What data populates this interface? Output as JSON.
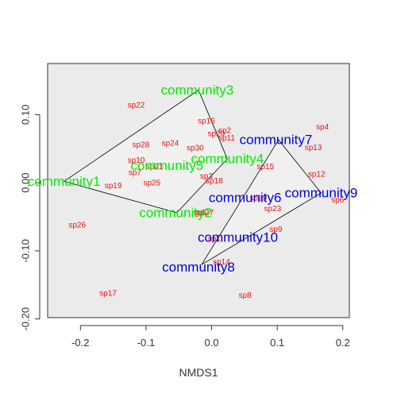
{
  "chart_data": {
    "type": "scatter",
    "title": "",
    "xlabel": "NMDS1",
    "ylabel": "",
    "xlim": [
      -0.25,
      0.21
    ],
    "ylim": [
      -0.198,
      0.175
    ],
    "xticks": [
      -0.2,
      -0.1,
      0.0,
      0.1,
      0.2
    ],
    "xtick_labels": [
      "-0.2",
      "-0.1",
      "0.0",
      "0.1",
      "0.2"
    ],
    "yticks": [
      -0.2,
      -0.1,
      0.0,
      0.1
    ],
    "ytick_labels": [
      "-0.20",
      "-0.10",
      "0.00",
      "0.10"
    ],
    "species_color": "#ee1111",
    "species": [
      {
        "label": "sp22",
        "x": -0.115,
        "y": 0.113
      },
      {
        "label": "sp16",
        "x": -0.008,
        "y": 0.09
      },
      {
        "label": "sp2",
        "x": 0.02,
        "y": 0.076
      },
      {
        "label": "sp20",
        "x": 0.007,
        "y": 0.071
      },
      {
        "label": "sp11",
        "x": 0.023,
        "y": 0.065
      },
      {
        "label": "sp28",
        "x": -0.108,
        "y": 0.055
      },
      {
        "label": "sp24",
        "x": -0.063,
        "y": 0.057
      },
      {
        "label": "sp30",
        "x": -0.025,
        "y": 0.05
      },
      {
        "label": "sp10",
        "x": -0.115,
        "y": 0.032
      },
      {
        "label": "sp21",
        "x": -0.087,
        "y": 0.023
      },
      {
        "label": "sp7",
        "x": -0.117,
        "y": 0.014
      },
      {
        "label": "sp3",
        "x": -0.008,
        "y": 0.009
      },
      {
        "label": "sp18",
        "x": 0.004,
        "y": 0.002
      },
      {
        "label": "sp19",
        "x": -0.15,
        "y": -0.005
      },
      {
        "label": "sp25",
        "x": -0.091,
        "y": -0.001
      },
      {
        "label": "sp15",
        "x": 0.082,
        "y": 0.023
      },
      {
        "label": "sp4",
        "x": 0.169,
        "y": 0.081
      },
      {
        "label": "sp13",
        "x": 0.155,
        "y": 0.051
      },
      {
        "label": "sp12",
        "x": 0.16,
        "y": 0.012
      },
      {
        "label": "sp6",
        "x": 0.192,
        "y": -0.026
      },
      {
        "label": "sp29",
        "x": 0.071,
        "y": -0.023
      },
      {
        "label": "sp23",
        "x": 0.093,
        "y": -0.039
      },
      {
        "label": "sp9",
        "x": 0.098,
        "y": -0.069
      },
      {
        "label": "sp5",
        "x": -0.018,
        "y": -0.045
      },
      {
        "label": "sp27",
        "x": -0.01,
        "y": -0.045
      },
      {
        "label": "sp1",
        "x": 0.004,
        "y": -0.083
      },
      {
        "label": "sp14",
        "x": 0.015,
        "y": -0.117
      },
      {
        "label": "sp26",
        "x": -0.205,
        "y": -0.063
      },
      {
        "label": "sp17",
        "x": -0.158,
        "y": -0.163
      },
      {
        "label": "sp8",
        "x": 0.051,
        "y": -0.166
      }
    ],
    "communities": [
      {
        "label": "community1",
        "x": -0.225,
        "y": 0.002,
        "color": "#00ee00"
      },
      {
        "label": "community2",
        "x": -0.055,
        "y": -0.044,
        "color": "#00ee00"
      },
      {
        "label": "community3",
        "x": -0.022,
        "y": 0.136,
        "color": "#00ee00"
      },
      {
        "label": "community4",
        "x": 0.024,
        "y": 0.035,
        "color": "#00ee00"
      },
      {
        "label": "community5",
        "x": -0.068,
        "y": 0.025,
        "color": "#00ee00"
      },
      {
        "label": "community6",
        "x": 0.051,
        "y": -0.022,
        "color": "#0000dd"
      },
      {
        "label": "community7",
        "x": 0.098,
        "y": 0.063,
        "color": "#0000dd"
      },
      {
        "label": "community8",
        "x": -0.02,
        "y": -0.124,
        "color": "#0000dd"
      },
      {
        "label": "community9",
        "x": 0.167,
        "y": -0.015,
        "color": "#0000dd"
      },
      {
        "label": "community10",
        "x": 0.04,
        "y": -0.08,
        "color": "#0000dd"
      }
    ],
    "hulls": [
      {
        "group": "green",
        "fill": "#f0f0f0",
        "points": [
          [
            -0.225,
            0.002
          ],
          [
            -0.02,
            0.136
          ],
          [
            0.024,
            0.035
          ],
          [
            -0.053,
            -0.044
          ]
        ]
      },
      {
        "group": "blue",
        "fill": "#f0f0f0",
        "points": [
          [
            -0.015,
            -0.12
          ],
          [
            0.102,
            0.063
          ],
          [
            0.167,
            -0.015
          ]
        ]
      }
    ],
    "grid": false,
    "plot_background": "#ebebeb"
  }
}
